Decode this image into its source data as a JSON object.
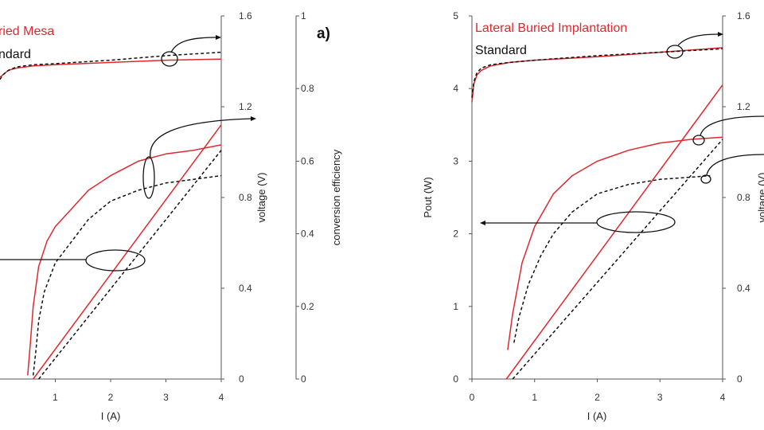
{
  "colors": {
    "red": "#e0282e",
    "black": "#111111"
  },
  "chart_data": [
    {
      "type": "line",
      "panel_label": "a)",
      "legend": [
        {
          "text": "ried Mesa",
          "color": "#e0282e"
        },
        {
          "text": "ndard",
          "color": "#111111"
        }
      ],
      "xlabel": "I (A)",
      "xlim": [
        0,
        4
      ],
      "x_ticks": [
        "1",
        "2",
        "3",
        "4"
      ],
      "y2label": "voltage (V)",
      "y2lim": [
        0,
        1.6
      ],
      "y2_ticks": [
        "0",
        "0.4",
        "0.8",
        "1.2",
        "1.6"
      ],
      "y3label": "conversion efficiency",
      "y3lim": [
        0,
        1
      ],
      "y3_ticks": [
        "0",
        "0.2",
        "0.4",
        "0.6",
        "0.8",
        "1"
      ],
      "series": [
        {
          "axis": "voltage",
          "color": "#e0282e",
          "dash": false,
          "x": [
            0.0,
            0.05,
            0.15,
            0.3,
            0.6,
            1.0,
            2.0,
            3.0,
            4.0
          ],
          "y": [
            1.33,
            1.34,
            1.36,
            1.37,
            1.38,
            1.385,
            1.395,
            1.405,
            1.41
          ]
        },
        {
          "axis": "voltage",
          "color": "#111111",
          "dash": true,
          "x": [
            0.0,
            0.05,
            0.15,
            0.3,
            0.6,
            1.0,
            2.0,
            3.0,
            4.0
          ],
          "y": [
            1.32,
            1.34,
            1.36,
            1.375,
            1.385,
            1.39,
            1.405,
            1.425,
            1.44
          ]
        },
        {
          "axis": "efficiency",
          "color": "#e0282e",
          "dash": false,
          "x": [
            0.5,
            0.55,
            0.6,
            0.7,
            0.85,
            1.0,
            1.3,
            1.6,
            2.0,
            2.5,
            3.0,
            3.5,
            4.0
          ],
          "y": [
            0.01,
            0.1,
            0.2,
            0.31,
            0.38,
            0.42,
            0.47,
            0.52,
            0.56,
            0.6,
            0.62,
            0.63,
            0.645
          ]
        },
        {
          "axis": "efficiency",
          "color": "#111111",
          "dash": true,
          "x": [
            0.6,
            0.65,
            0.7,
            0.8,
            1.0,
            1.3,
            1.6,
            2.0,
            2.5,
            3.0,
            3.5,
            4.0
          ],
          "y": [
            0.01,
            0.08,
            0.16,
            0.24,
            0.32,
            0.38,
            0.44,
            0.49,
            0.52,
            0.54,
            0.55,
            0.56
          ]
        },
        {
          "axis": "pout",
          "color": "#e0282e",
          "dash": false,
          "x": [
            0.6,
            4.0
          ],
          "y": [
            0.0,
            0.7
          ]
        },
        {
          "axis": "pout",
          "color": "#111111",
          "dash": true,
          "x": [
            0.7,
            4.0
          ],
          "y": [
            0.0,
            0.63
          ]
        }
      ]
    },
    {
      "type": "line",
      "legend": [
        {
          "text": "Lateral Buried Implantation",
          "color": "#e0282e"
        },
        {
          "text": "Standard",
          "color": "#111111"
        }
      ],
      "xlabel": "I (A)",
      "xlim": [
        0,
        4
      ],
      "x_ticks": [
        "0",
        "1",
        "2",
        "3",
        "4"
      ],
      "ylabel": "Pout (W)",
      "ylim": [
        0,
        5
      ],
      "y_ticks": [
        "0",
        "1",
        "2",
        "3",
        "4",
        "5"
      ],
      "y2label": "voltage (V)",
      "y2lim": [
        0,
        1.6
      ],
      "y2_ticks": [
        "0",
        "0.4",
        "0.8",
        "1.2",
        "1.6"
      ],
      "series": [
        {
          "axis": "voltage",
          "color": "#e0282e",
          "dash": false,
          "x": [
            0.0,
            0.03,
            0.08,
            0.15,
            0.3,
            0.6,
            1.0,
            2.0,
            3.0,
            4.0
          ],
          "y": [
            1.22,
            1.3,
            1.34,
            1.36,
            1.38,
            1.395,
            1.405,
            1.42,
            1.44,
            1.46
          ]
        },
        {
          "axis": "voltage",
          "color": "#111111",
          "dash": true,
          "x": [
            0.0,
            0.03,
            0.08,
            0.15,
            0.3,
            0.6,
            1.0,
            2.0,
            3.0,
            4.0
          ],
          "y": [
            1.24,
            1.31,
            1.35,
            1.37,
            1.385,
            1.395,
            1.405,
            1.425,
            1.44,
            1.455
          ]
        },
        {
          "axis": "pout",
          "color": "#e0282e",
          "dash": false,
          "x": [
            0.55,
            4.0
          ],
          "y": [
            0.0,
            4.05
          ]
        },
        {
          "axis": "pout",
          "color": "#111111",
          "dash": true,
          "x": [
            0.65,
            4.0
          ],
          "y": [
            0.0,
            3.3
          ]
        },
        {
          "axis": "efficiency",
          "color": "#e0282e",
          "dash": false,
          "x": [
            0.57,
            0.65,
            0.8,
            1.0,
            1.3,
            1.6,
            2.0,
            2.5,
            3.0,
            3.5,
            4.0
          ],
          "y": [
            0.4,
            0.9,
            1.6,
            2.1,
            2.55,
            2.8,
            3.0,
            3.15,
            3.25,
            3.3,
            3.33
          ]
        },
        {
          "axis": "efficiency",
          "color": "#111111",
          "dash": true,
          "x": [
            0.67,
            0.75,
            0.9,
            1.1,
            1.3,
            1.6,
            2.0,
            2.5,
            3.0,
            3.5,
            3.8
          ],
          "y": [
            0.5,
            0.85,
            1.3,
            1.7,
            2.0,
            2.3,
            2.55,
            2.68,
            2.75,
            2.78,
            2.8
          ]
        }
      ]
    }
  ]
}
